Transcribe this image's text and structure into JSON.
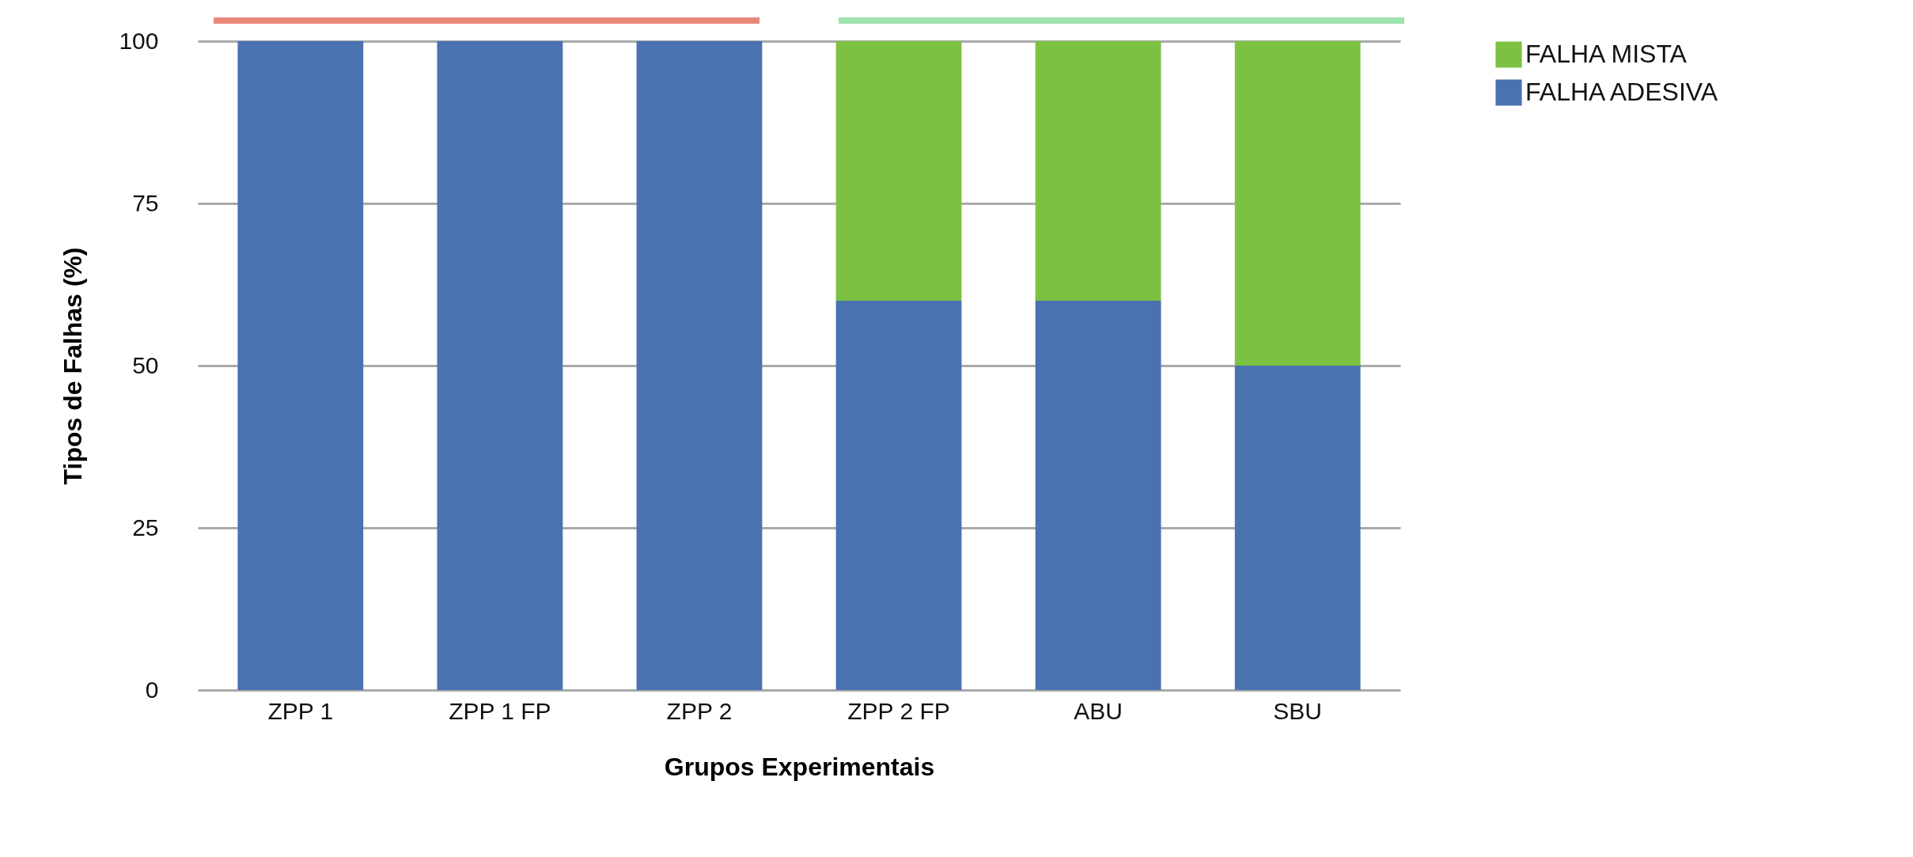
{
  "chart_data": {
    "type": "bar",
    "stacked": true,
    "xlabel": "Grupos Experimentais",
    "ylabel": "Tipos de Falhas (%)",
    "categories": [
      "ZPP 1",
      "ZPP 1 FP",
      "ZPP 2",
      "ZPP 2 FP",
      "ABU",
      "SBU"
    ],
    "series": [
      {
        "name": "FALHA ADESIVA",
        "color": "#4a72b0",
        "values": [
          100,
          100,
          100,
          60,
          60,
          50
        ]
      },
      {
        "name": "FALHA MISTA",
        "color": "#7dc142",
        "values": [
          0,
          0,
          0,
          40,
          40,
          50
        ]
      }
    ],
    "ylim": [
      0,
      100
    ],
    "yticks": [
      0,
      25,
      50,
      75,
      100
    ],
    "grid": "y",
    "legend": "right"
  }
}
